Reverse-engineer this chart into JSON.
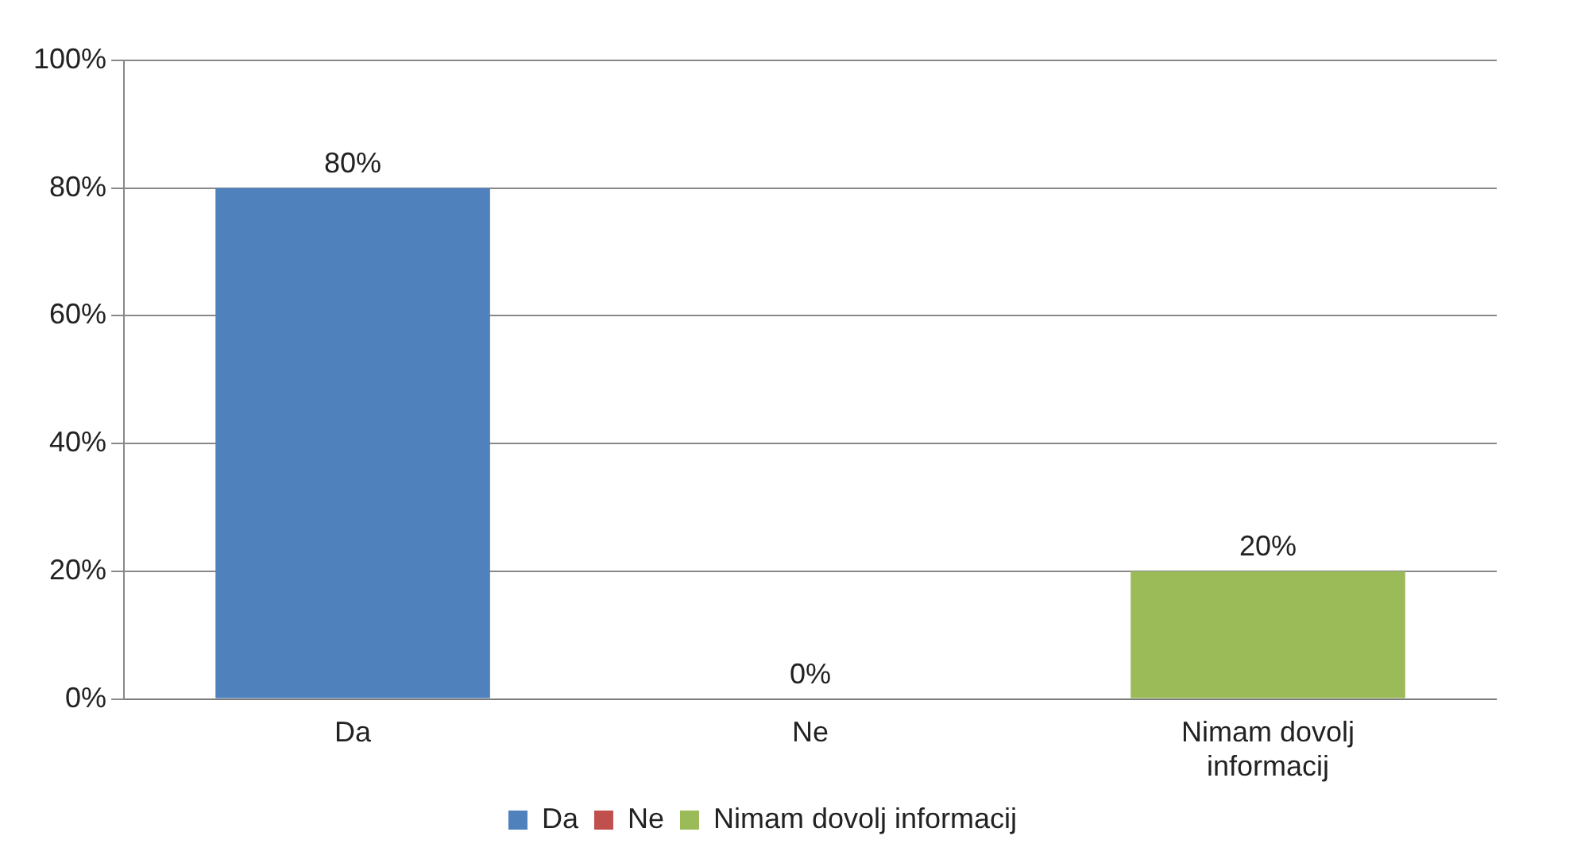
{
  "chart_data": {
    "type": "bar",
    "categories": [
      "Da",
      "Ne",
      "Nimam dovolj informacij"
    ],
    "series": [
      {
        "name": "Da",
        "color": "#4f81bd",
        "values": [
          80,
          null,
          null
        ],
        "value_labels": [
          "80%",
          null,
          null
        ]
      },
      {
        "name": "Ne",
        "color": "#c0504d",
        "values": [
          null,
          0,
          null
        ],
        "value_labels": [
          null,
          "0%",
          null
        ]
      },
      {
        "name": "Nimam dovolj informacij",
        "color": "#9bbb59",
        "values": [
          null,
          null,
          20
        ],
        "value_labels": [
          null,
          null,
          "20%"
        ]
      }
    ],
    "ylim": [
      0,
      100
    ],
    "yticks": [
      {
        "value": 0,
        "label": "0%"
      },
      {
        "value": 20,
        "label": "20%"
      },
      {
        "value": 40,
        "label": "40%"
      },
      {
        "value": 60,
        "label": "60%"
      },
      {
        "value": 80,
        "label": "80%"
      },
      {
        "value": 100,
        "label": "100%"
      }
    ],
    "grid": "y",
    "legend": "bottom"
  }
}
